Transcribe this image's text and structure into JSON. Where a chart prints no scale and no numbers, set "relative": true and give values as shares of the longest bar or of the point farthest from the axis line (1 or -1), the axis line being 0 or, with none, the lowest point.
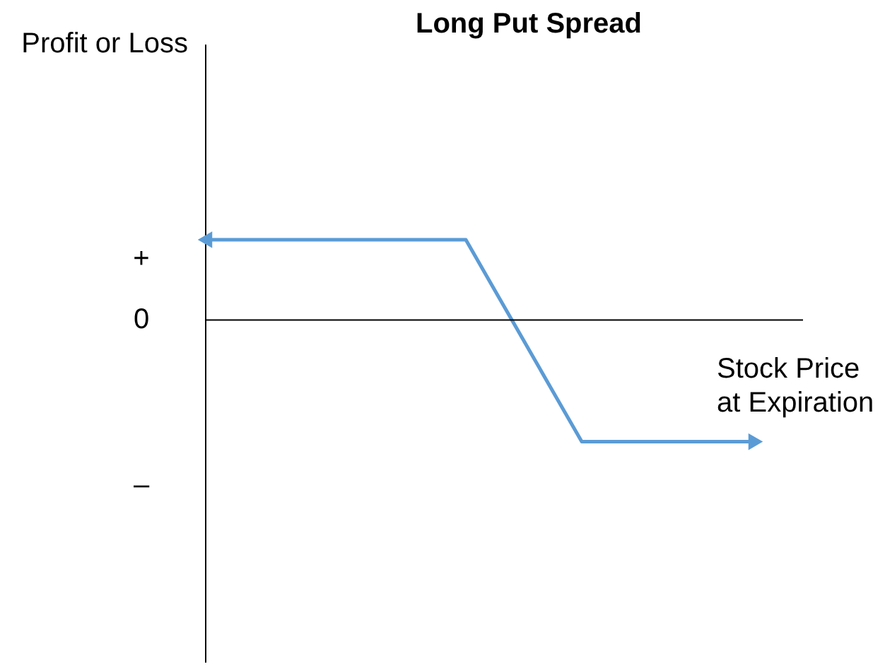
{
  "chart_data": {
    "type": "line",
    "title": "Long Put Spread",
    "xlabel": "Stock Price\nat Expiration",
    "relative": true,
    "annotations": [
      "+",
      "0",
      "–",
      "Profit or Loss"
    ],
    "categories": [
      null,
      null,
      null,
      null,
      null,
      null,
      null,
      null,
      null,
      null,
      null,
      null,
      null,
      null,
      null,
      null,
      null,
      null,
      null,
      null
    ],
    "series": [
      {
        "color": "#5b9bd5",
        "values": [
          0.66,
          0.66,
          0.66,
          0.66,
          0.66,
          0.66,
          0.66,
          0.66,
          0.66,
          0.66,
          0.245,
          -0.17,
          -0.585,
          -1,
          -1,
          -1,
          -1,
          -1,
          -1,
          -1
        ]
      }
    ]
  }
}
